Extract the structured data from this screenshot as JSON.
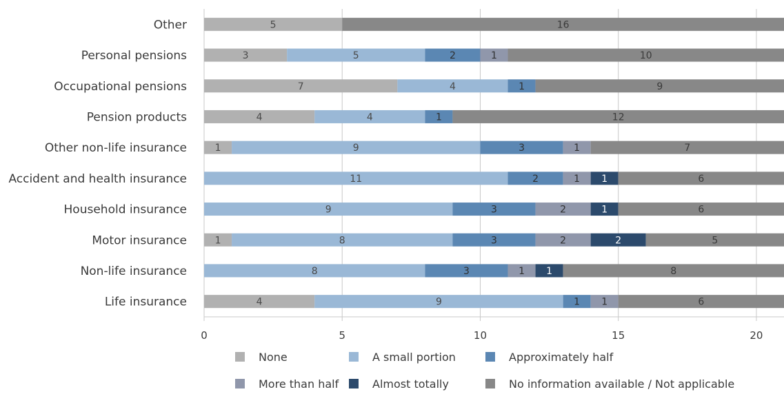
{
  "chart_data": {
    "type": "bar",
    "orientation": "horizontal",
    "stacked": true,
    "title": "",
    "xlabel": "",
    "ylabel": "",
    "xlim": [
      0,
      21
    ],
    "xticks": [
      0,
      5,
      10,
      15,
      20
    ],
    "grid": "vertical",
    "legend_position": "bottom",
    "categories": [
      "Other",
      "Personal pensions",
      "Occupational pensions",
      "Pension products",
      "Other non-life insurance",
      "Accident and health insurance",
      "Household insurance",
      "Motor insurance",
      "Non-life insurance",
      "Life insurance"
    ],
    "series": [
      {
        "name": "None",
        "color": "#b1b1b1",
        "label_color": "#4a4a4a",
        "values": [
          5,
          3,
          7,
          4,
          1,
          0,
          0,
          1,
          0,
          4
        ]
      },
      {
        "name": "A small portion",
        "color": "#9ab8d6",
        "label_color": "#4a4a4a",
        "values": [
          0,
          5,
          4,
          4,
          9,
          11,
          9,
          8,
          8,
          9
        ]
      },
      {
        "name": "Approximately half",
        "color": "#5b87b3",
        "label_color": "#2f2f2f",
        "values": [
          0,
          2,
          1,
          1,
          3,
          2,
          3,
          3,
          3,
          1
        ]
      },
      {
        "name": "More than half",
        "color": "#9097ab",
        "label_color": "#2f2f2f",
        "values": [
          0,
          1,
          0,
          0,
          1,
          1,
          2,
          2,
          1,
          1
        ]
      },
      {
        "name": "Almost totally",
        "color": "#2c4a6c",
        "label_color": "#ffffff",
        "values": [
          0,
          0,
          0,
          0,
          0,
          1,
          1,
          2,
          1,
          0
        ]
      },
      {
        "name": "No information available / Not applicable",
        "color": "#888888",
        "label_color": "#3a3a3a",
        "values": [
          16,
          10,
          9,
          12,
          7,
          6,
          6,
          5,
          8,
          6
        ]
      }
    ]
  }
}
